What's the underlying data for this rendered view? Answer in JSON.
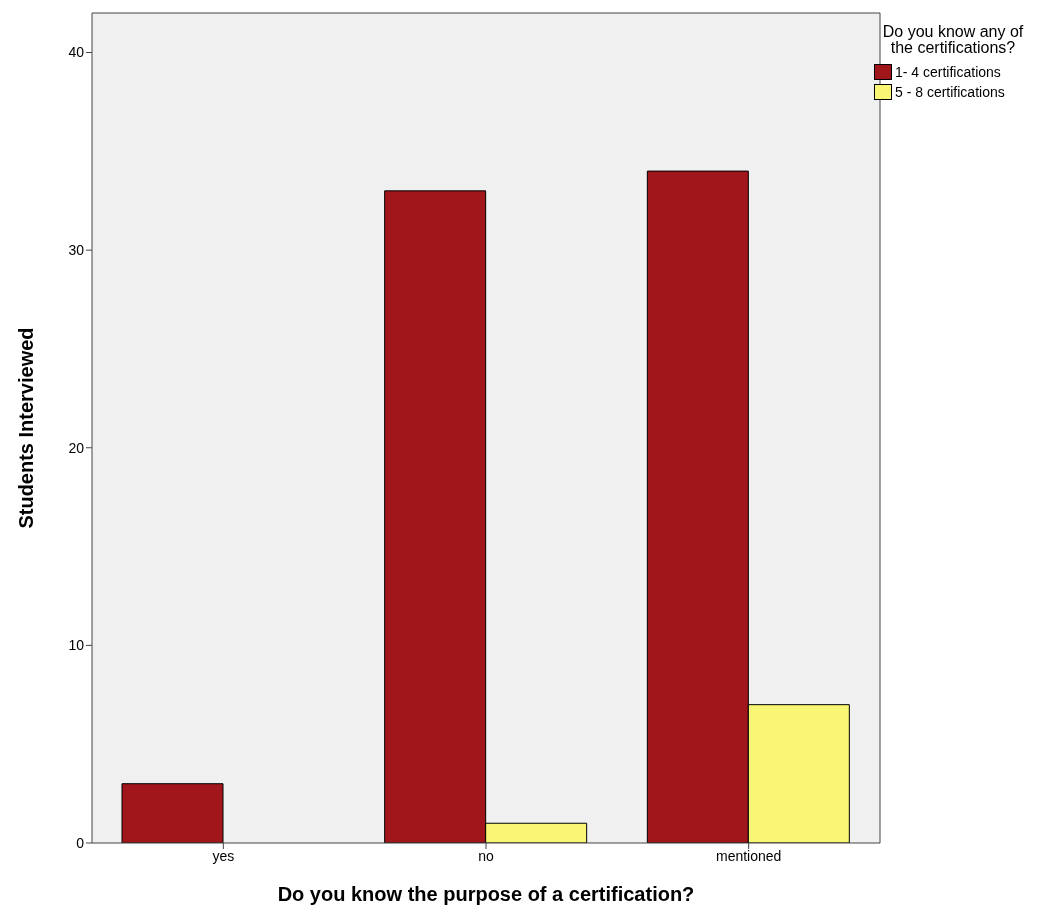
{
  "chart_data": {
    "type": "bar",
    "xlabel": "Do you know the purpose of a certification?",
    "ylabel": "Students Interviewed",
    "legend_title": "Do you know any of the certifications?",
    "categories": [
      "yes",
      "no",
      "mentioned"
    ],
    "series": [
      {
        "name": "1- 4 certifications",
        "color": "#a0161b",
        "values": [
          3,
          33,
          34
        ]
      },
      {
        "name": "5 - 8 certifications",
        "color": "#f8f674",
        "values": [
          null,
          1,
          7
        ]
      }
    ],
    "ylim": [
      0,
      42
    ],
    "yticks": [
      0,
      10,
      20,
      30,
      40
    ],
    "grid": false,
    "legend": "right"
  }
}
